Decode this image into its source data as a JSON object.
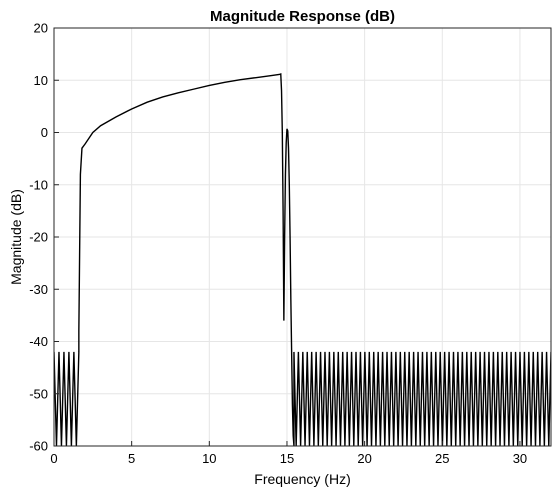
{
  "chart_data": {
    "type": "line",
    "title": "Magnitude Response (dB)",
    "xlabel": "Frequency (Hz)",
    "ylabel": "Magnitude (dB)",
    "xlim": [
      0,
      32
    ],
    "ylim": [
      -60,
      20
    ],
    "xticks": [
      0,
      5,
      10,
      15,
      20,
      25,
      30
    ],
    "yticks": [
      20,
      10,
      0,
      -10,
      -20,
      -30,
      -40,
      -50,
      -60
    ],
    "grid": true,
    "legend": "none",
    "line_color": "#000000",
    "series": [
      {
        "passband": {
          "x": [
            1.6,
            1.7,
            1.8,
            2.0,
            2.5,
            3,
            4,
            5,
            6,
            7,
            8,
            9,
            10,
            11,
            12,
            13,
            14,
            14.5,
            14.6
          ],
          "y": [
            -38,
            -8,
            -3,
            -2.2,
            0,
            1.3,
            3,
            4.5,
            5.8,
            6.8,
            7.6,
            8.3,
            9.0,
            9.6,
            10.1,
            10.5,
            10.9,
            11.1,
            11.2
          ]
        },
        "transition": {
          "x": [
            14.6,
            14.65,
            14.7,
            14.75,
            14.8,
            14.85,
            14.9,
            14.95,
            15.0,
            15.05,
            15.1,
            15.15,
            15.2,
            15.25,
            15.3,
            15.35,
            15.4,
            15.45
          ],
          "y": [
            11.2,
            8,
            0,
            -15,
            -36,
            -20,
            -8,
            -2,
            0.7,
            0.3,
            -3,
            -10,
            -20,
            -32,
            -42,
            -52,
            -58,
            -60
          ]
        },
        "stopband_low": {
          "x_range": [
            0,
            1.6
          ],
          "ripple_top": -42,
          "ripple_bottom": -60,
          "cycles": 5
        },
        "stopband_high": {
          "x_range": [
            15.45,
            32
          ],
          "ripple_top": -42,
          "ripple_bottom": -60,
          "cycles": 58
        }
      }
    ]
  }
}
